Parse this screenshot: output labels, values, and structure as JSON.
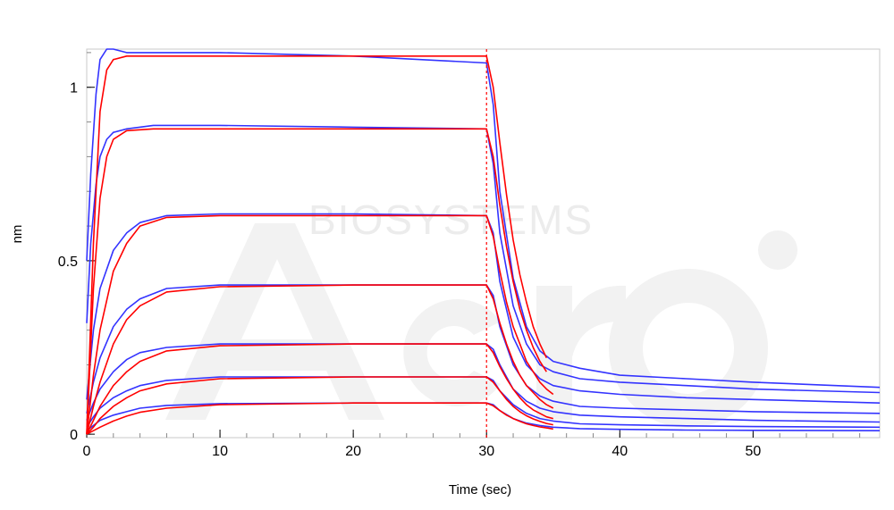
{
  "chart_data": {
    "type": "line",
    "title": "",
    "xlabel": "Time (sec)",
    "ylabel": "nm",
    "xlim": [
      0,
      59.5
    ],
    "ylim": [
      -0.01,
      1.11
    ],
    "xticks": [
      0,
      10,
      20,
      30,
      40,
      50
    ],
    "yticks": [
      0,
      0.5,
      1
    ],
    "xtick_labels": [
      "0",
      "10",
      "20",
      "30",
      "40",
      "50"
    ],
    "ytick_labels": [
      "0",
      "0.5",
      "1"
    ],
    "grid": false,
    "legend": "none",
    "dissociation_marker_x": 30,
    "watermark": {
      "text": "BIOSYSTEMS",
      "logo": "Acro"
    },
    "colors": {
      "measured": "#3333ff",
      "fit": "#ff0000",
      "marker": "#ff0000",
      "watermark": "#ececec"
    },
    "series_measured": [
      {
        "x": [
          0,
          0.3,
          0.7,
          1,
          1.5,
          2,
          3,
          5,
          10,
          20,
          30,
          30.5,
          31,
          32,
          33,
          34,
          35,
          37,
          40,
          45,
          50,
          59.5
        ],
        "y": [
          0.5,
          0.75,
          0.98,
          1.08,
          1.11,
          1.11,
          1.1,
          1.1,
          1.1,
          1.09,
          1.07,
          0.95,
          0.7,
          0.45,
          0.31,
          0.24,
          0.21,
          0.19,
          0.17,
          0.16,
          0.15,
          0.135
        ]
      },
      {
        "x": [
          0,
          0.3,
          0.7,
          1,
          1.5,
          2,
          3,
          5,
          10,
          20,
          30,
          30.5,
          31,
          32,
          33,
          34,
          35,
          37,
          40,
          45,
          50,
          59.5
        ],
        "y": [
          0.32,
          0.55,
          0.72,
          0.8,
          0.85,
          0.87,
          0.88,
          0.89,
          0.89,
          0.885,
          0.88,
          0.78,
          0.58,
          0.37,
          0.26,
          0.2,
          0.18,
          0.16,
          0.15,
          0.14,
          0.13,
          0.12
        ]
      },
      {
        "x": [
          0,
          0.5,
          1,
          2,
          3,
          4,
          6,
          10,
          20,
          30,
          30.5,
          31,
          32,
          33,
          34,
          35,
          37,
          40,
          45,
          50,
          59.5
        ],
        "y": [
          0.1,
          0.3,
          0.42,
          0.53,
          0.58,
          0.61,
          0.63,
          0.635,
          0.635,
          0.63,
          0.58,
          0.44,
          0.28,
          0.2,
          0.16,
          0.14,
          0.125,
          0.115,
          0.105,
          0.1,
          0.09
        ]
      },
      {
        "x": [
          0,
          0.5,
          1,
          2,
          3,
          4,
          6,
          10,
          20,
          30,
          30.5,
          31,
          32,
          33,
          34,
          35,
          37,
          40,
          45,
          50,
          59.5
        ],
        "y": [
          0.06,
          0.15,
          0.22,
          0.31,
          0.36,
          0.39,
          0.42,
          0.43,
          0.43,
          0.43,
          0.4,
          0.31,
          0.2,
          0.14,
          0.11,
          0.095,
          0.08,
          0.075,
          0.07,
          0.065,
          0.06
        ]
      },
      {
        "x": [
          0,
          0.5,
          1,
          2,
          3,
          4,
          6,
          10,
          20,
          30,
          30.5,
          31,
          32,
          33,
          34,
          35,
          37,
          40,
          45,
          50,
          59.5
        ],
        "y": [
          0.04,
          0.09,
          0.13,
          0.18,
          0.215,
          0.235,
          0.25,
          0.26,
          0.26,
          0.26,
          0.245,
          0.2,
          0.13,
          0.095,
          0.075,
          0.065,
          0.055,
          0.05,
          0.045,
          0.04,
          0.035
        ]
      },
      {
        "x": [
          0,
          0.5,
          1,
          2,
          3,
          4,
          6,
          10,
          20,
          30,
          30.5,
          31,
          32,
          33,
          34,
          35,
          37,
          40,
          45,
          50,
          59.5
        ],
        "y": [
          0.02,
          0.05,
          0.075,
          0.105,
          0.125,
          0.14,
          0.155,
          0.165,
          0.165,
          0.165,
          0.155,
          0.125,
          0.085,
          0.06,
          0.045,
          0.038,
          0.03,
          0.027,
          0.024,
          0.022,
          0.02
        ]
      },
      {
        "x": [
          0,
          0.5,
          1,
          2,
          3,
          4,
          6,
          10,
          20,
          30,
          30.5,
          31,
          32,
          33,
          34,
          35,
          37,
          40,
          45,
          50,
          59.5
        ],
        "y": [
          0.01,
          0.025,
          0.04,
          0.055,
          0.065,
          0.075,
          0.083,
          0.088,
          0.09,
          0.09,
          0.085,
          0.068,
          0.045,
          0.032,
          0.025,
          0.02,
          0.016,
          0.014,
          0.012,
          0.011,
          0.01
        ]
      }
    ],
    "series_fit": [
      {
        "x": [
          0,
          0.5,
          1,
          1.5,
          2,
          3,
          5,
          10,
          20,
          30,
          30.5,
          31,
          31.5,
          32,
          32.5,
          33,
          33.5,
          34,
          34.5
        ],
        "y": [
          0,
          0.55,
          0.93,
          1.05,
          1.08,
          1.09,
          1.09,
          1.09,
          1.09,
          1.09,
          1.0,
          0.84,
          0.69,
          0.56,
          0.46,
          0.38,
          0.31,
          0.26,
          0.22
        ]
      },
      {
        "x": [
          0,
          0.5,
          1,
          1.5,
          2,
          3,
          5,
          10,
          20,
          30,
          30.5,
          31,
          31.5,
          32,
          32.5,
          33,
          33.5,
          34,
          34.5
        ],
        "y": [
          0,
          0.42,
          0.68,
          0.8,
          0.85,
          0.875,
          0.88,
          0.88,
          0.88,
          0.88,
          0.8,
          0.66,
          0.54,
          0.44,
          0.36,
          0.3,
          0.25,
          0.21,
          0.18
        ]
      },
      {
        "x": [
          0,
          0.5,
          1,
          2,
          3,
          4,
          6,
          10,
          20,
          30,
          30.5,
          31,
          31.5,
          32,
          32.5,
          33,
          33.5,
          34,
          34.5,
          35
        ],
        "y": [
          0,
          0.17,
          0.3,
          0.47,
          0.55,
          0.6,
          0.625,
          0.63,
          0.63,
          0.63,
          0.57,
          0.47,
          0.38,
          0.31,
          0.26,
          0.21,
          0.18,
          0.15,
          0.13,
          0.115
        ]
      },
      {
        "x": [
          0,
          0.5,
          1,
          2,
          3,
          4,
          6,
          10,
          20,
          30,
          30.5,
          31,
          31.5,
          32,
          32.5,
          33,
          33.5,
          34,
          34.5,
          35
        ],
        "y": [
          0,
          0.08,
          0.15,
          0.26,
          0.33,
          0.37,
          0.41,
          0.425,
          0.43,
          0.43,
          0.39,
          0.32,
          0.26,
          0.21,
          0.17,
          0.14,
          0.12,
          0.1,
          0.085,
          0.075
        ]
      },
      {
        "x": [
          0,
          0.5,
          1,
          2,
          3,
          4,
          6,
          10,
          20,
          30,
          30.5,
          31,
          31.5,
          32,
          32.5,
          33,
          33.5,
          34,
          34.5,
          35
        ],
        "y": [
          0,
          0.04,
          0.08,
          0.14,
          0.18,
          0.21,
          0.24,
          0.255,
          0.26,
          0.26,
          0.235,
          0.195,
          0.16,
          0.13,
          0.105,
          0.085,
          0.07,
          0.06,
          0.05,
          0.045
        ]
      },
      {
        "x": [
          0,
          0.5,
          1,
          2,
          3,
          4,
          6,
          10,
          20,
          30,
          30.5,
          31,
          31.5,
          32,
          32.5,
          33,
          33.5,
          34,
          34.5,
          35
        ],
        "y": [
          0,
          0.02,
          0.045,
          0.08,
          0.105,
          0.125,
          0.145,
          0.16,
          0.165,
          0.165,
          0.15,
          0.125,
          0.1,
          0.08,
          0.065,
          0.053,
          0.044,
          0.037,
          0.031,
          0.027
        ]
      },
      {
        "x": [
          0,
          0.5,
          1,
          2,
          3,
          4,
          6,
          10,
          20,
          30,
          30.5,
          31,
          31.5,
          32,
          32.5,
          33,
          33.5,
          34,
          34.5,
          35
        ],
        "y": [
          0,
          0.01,
          0.02,
          0.038,
          0.052,
          0.063,
          0.075,
          0.085,
          0.09,
          0.09,
          0.082,
          0.068,
          0.055,
          0.045,
          0.037,
          0.03,
          0.025,
          0.021,
          0.018,
          0.015
        ]
      }
    ]
  }
}
